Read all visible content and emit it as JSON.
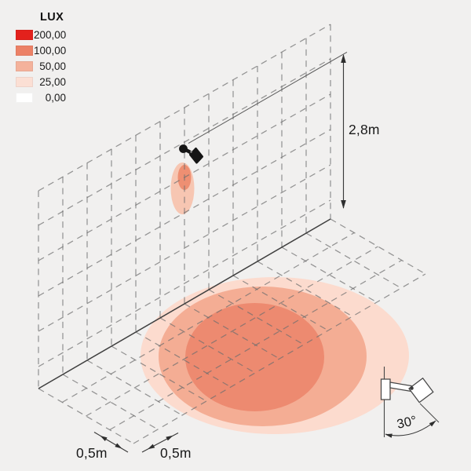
{
  "legend": {
    "title": "LUX",
    "items": [
      {
        "value": "200,00",
        "color": "#e3211c"
      },
      {
        "value": "100,00",
        "color": "#ec8166"
      },
      {
        "value": "50,00",
        "color": "#f4b29b"
      },
      {
        "value": "25,00",
        "color": "#fbdfd4"
      },
      {
        "value": "0,00",
        "color": "#ffffff"
      }
    ]
  },
  "dimensions": {
    "mount_height": "2,8m",
    "cell_depth": "0,5m",
    "cell_width": "0,5m",
    "beam_tilt": "30°"
  },
  "illumination": {
    "wall_glow": [
      {
        "level_lux": "100,00",
        "color": "#ee8f72"
      },
      {
        "level_lux": "50,00",
        "color": "#f7c6b2"
      }
    ],
    "floor_pools": [
      {
        "level_lux": "100,00",
        "color": "#ed8a70"
      },
      {
        "level_lux": "50,00",
        "color": "#f4ad94"
      },
      {
        "level_lux": "25,00",
        "color": "#fcdbce"
      }
    ]
  },
  "colors": {
    "background": "#f1f0ef",
    "grid_line": "#6f6f6f",
    "lamp_black": "#151515"
  }
}
